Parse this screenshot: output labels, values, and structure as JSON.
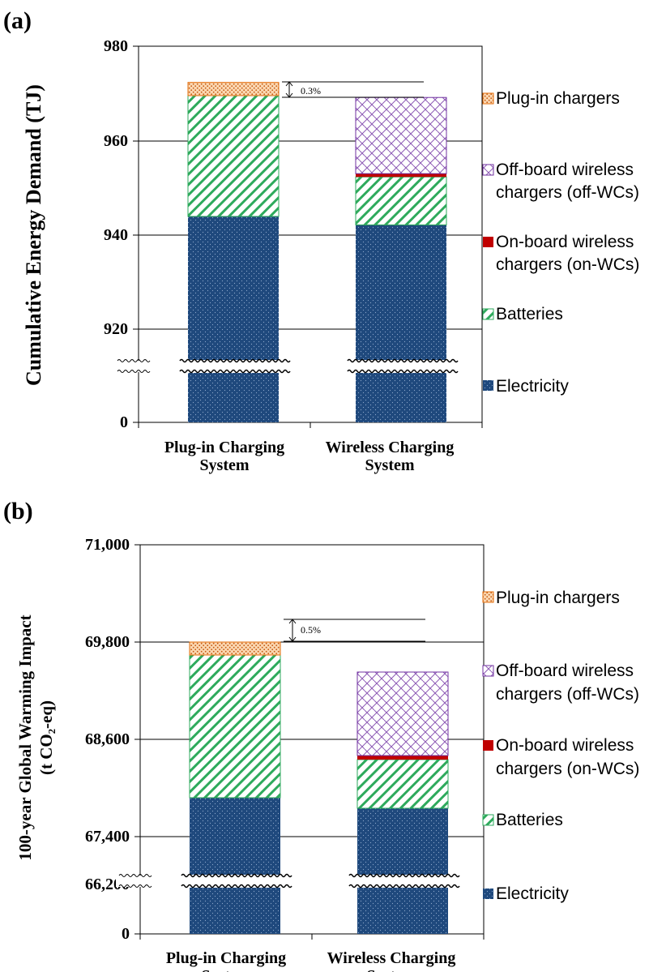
{
  "chart_data": [
    {
      "panel": "(a)",
      "type": "bar",
      "stacked": true,
      "ylabel": "Cumulative Energy Demand (TJ)",
      "categories": [
        "Plug-in Charging\nSystem",
        "Wireless Charging\nSystem"
      ],
      "y_axis": {
        "ticks": [
          "980",
          "960",
          "940",
          "920",
          "0"
        ],
        "broken": true,
        "range_above_break": [
          910,
          980
        ]
      },
      "grid": true,
      "series": [
        {
          "name": "Electricity",
          "values": [
            943.8,
            942.0
          ]
        },
        {
          "name": "Batteries",
          "values": [
            25.7,
            10.2
          ]
        },
        {
          "name": "On-board wireless chargers (on-WCs)",
          "values": [
            0,
            0.7
          ]
        },
        {
          "name": "Off-board wireless chargers (off-WCs)",
          "values": [
            0,
            16.2
          ]
        },
        {
          "name": "Plug-in chargers",
          "values": [
            2.8,
            0
          ]
        }
      ],
      "totals": [
        972.3,
        969.1
      ],
      "annotation": "0.3%",
      "legend": [
        "Plug-in chargers",
        "Off-board wireless\nchargers (off-WCs)",
        "On-board wireless\nchargers (on-WCs)",
        "Batteries",
        "Electricity"
      ]
    },
    {
      "panel": "(b)",
      "type": "bar",
      "stacked": true,
      "ylabel_line1": "100-year Global Warming Impact",
      "ylabel_line2": "(t CO₂-eq)",
      "categories": [
        "Plug-in Charging\nSystem",
        "Wireless Charging\nSystem"
      ],
      "y_axis": {
        "ticks": [
          "71,000",
          "69,800",
          "68,600",
          "67,400",
          "66,200",
          "0"
        ],
        "broken": true,
        "range_above_break": [
          65700,
          71000
        ]
      },
      "grid": true,
      "series": [
        {
          "name": "Electricity",
          "values": [
            67880,
            67750
          ]
        },
        {
          "name": "Batteries",
          "values": [
            1760,
            600
          ]
        },
        {
          "name": "On-board wireless chargers (on-WCs)",
          "values": [
            0,
            50
          ]
        },
        {
          "name": "Off-board wireless chargers (off-WCs)",
          "values": [
            0,
            1030
          ]
        },
        {
          "name": "Plug-in chargers",
          "values": [
            160,
            0
          ]
        }
      ],
      "totals": [
        69800,
        69430
      ],
      "annotation": "0.5%",
      "legend": [
        "Plug-in chargers",
        "Off-board wireless\nchargers (off-WCs)",
        "On-board wireless\nchargers (on-WCs)",
        "Batteries",
        "Electricity"
      ]
    }
  ],
  "colors": {
    "electricity": "#1f497d",
    "batteries": "#2eaa5c",
    "on_board": "#c00000",
    "off_board": "#7030a0",
    "plug_in": "#e36c0a"
  }
}
